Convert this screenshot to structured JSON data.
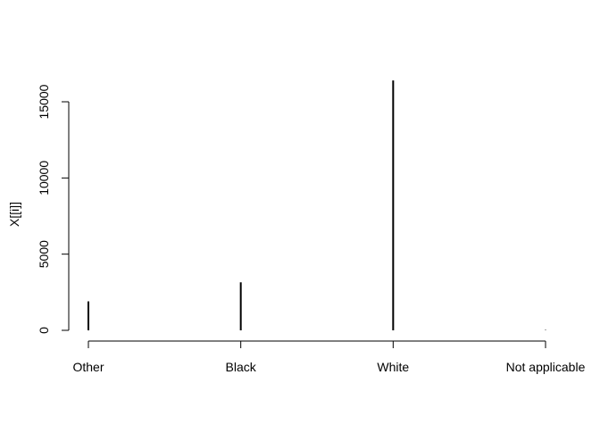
{
  "chart_data": {
    "type": "bar",
    "categories": [
      "Other",
      "Black",
      "White",
      "Not applicable"
    ],
    "values": [
      1900,
      3150,
      16400,
      20
    ],
    "xlabel": "",
    "ylabel": "X[[i]]",
    "ylim": [
      0,
      16500
    ],
    "yticks": [
      0,
      5000,
      10000,
      15000
    ],
    "ytick_labels": [
      "0",
      "5000",
      "10000",
      "15000"
    ],
    "grid": false,
    "legend": "none",
    "colors": {
      "bars": "#000000",
      "axes": "#000000",
      "background": "#ffffff"
    }
  }
}
